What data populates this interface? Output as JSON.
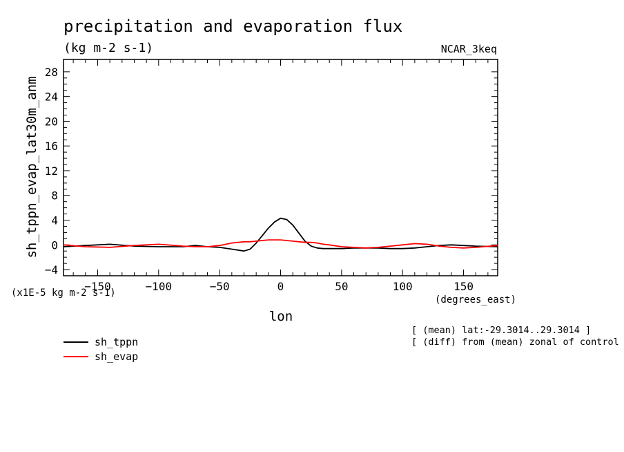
{
  "title": "precipitation and evaporation flux",
  "units": "(kg m-2 s-1)",
  "model": "NCAR_3keq",
  "ylabel": "sh_tppn_evap_lat30m_anm",
  "yunits": "(x1E-5 kg m-2 s-1)",
  "xunits": "(degrees_east)",
  "xlabel": "lon",
  "notes": [
    "[ (mean) lat:-29.3014..29.3014 ]",
    "[ (diff) from (mean) zonal of control ]"
  ],
  "chart_data": {
    "type": "line",
    "xlim": [
      -178,
      178
    ],
    "ylim": [
      -5,
      30
    ],
    "xticks": [
      -150,
      -100,
      -50,
      0,
      50,
      100,
      150
    ],
    "yticks": [
      -4,
      0,
      4,
      8,
      12,
      16,
      20,
      24,
      28
    ],
    "grid": false,
    "legend_position": "bottom-left",
    "x": [
      -178,
      -160,
      -140,
      -120,
      -100,
      -80,
      -70,
      -60,
      -50,
      -40,
      -30,
      -25,
      -20,
      -15,
      -10,
      -5,
      0,
      5,
      10,
      15,
      20,
      25,
      30,
      35,
      40,
      50,
      60,
      70,
      80,
      90,
      100,
      110,
      120,
      130,
      140,
      150,
      160,
      178
    ],
    "series": [
      {
        "name": "sh_tppn",
        "color": "#000000",
        "values": [
          -0.3,
          -0.1,
          0.1,
          -0.2,
          -0.3,
          -0.3,
          -0.1,
          -0.3,
          -0.4,
          -0.7,
          -1.0,
          -0.7,
          0.3,
          1.5,
          2.7,
          3.7,
          4.3,
          4.1,
          3.2,
          1.9,
          0.6,
          -0.2,
          -0.5,
          -0.6,
          -0.6,
          -0.6,
          -0.5,
          -0.5,
          -0.5,
          -0.6,
          -0.6,
          -0.5,
          -0.3,
          -0.1,
          0.0,
          -0.1,
          -0.2,
          -0.3
        ]
      },
      {
        "name": "sh_evap",
        "color": "#ff0000",
        "values": [
          0.0,
          -0.3,
          -0.4,
          -0.1,
          0.1,
          -0.2,
          -0.3,
          -0.3,
          -0.1,
          0.3,
          0.5,
          0.5,
          0.6,
          0.7,
          0.8,
          0.8,
          0.8,
          0.7,
          0.6,
          0.5,
          0.4,
          0.4,
          0.3,
          0.1,
          0.0,
          -0.3,
          -0.4,
          -0.5,
          -0.4,
          -0.2,
          0.0,
          0.2,
          0.1,
          -0.2,
          -0.4,
          -0.5,
          -0.4,
          -0.1
        ]
      }
    ]
  }
}
